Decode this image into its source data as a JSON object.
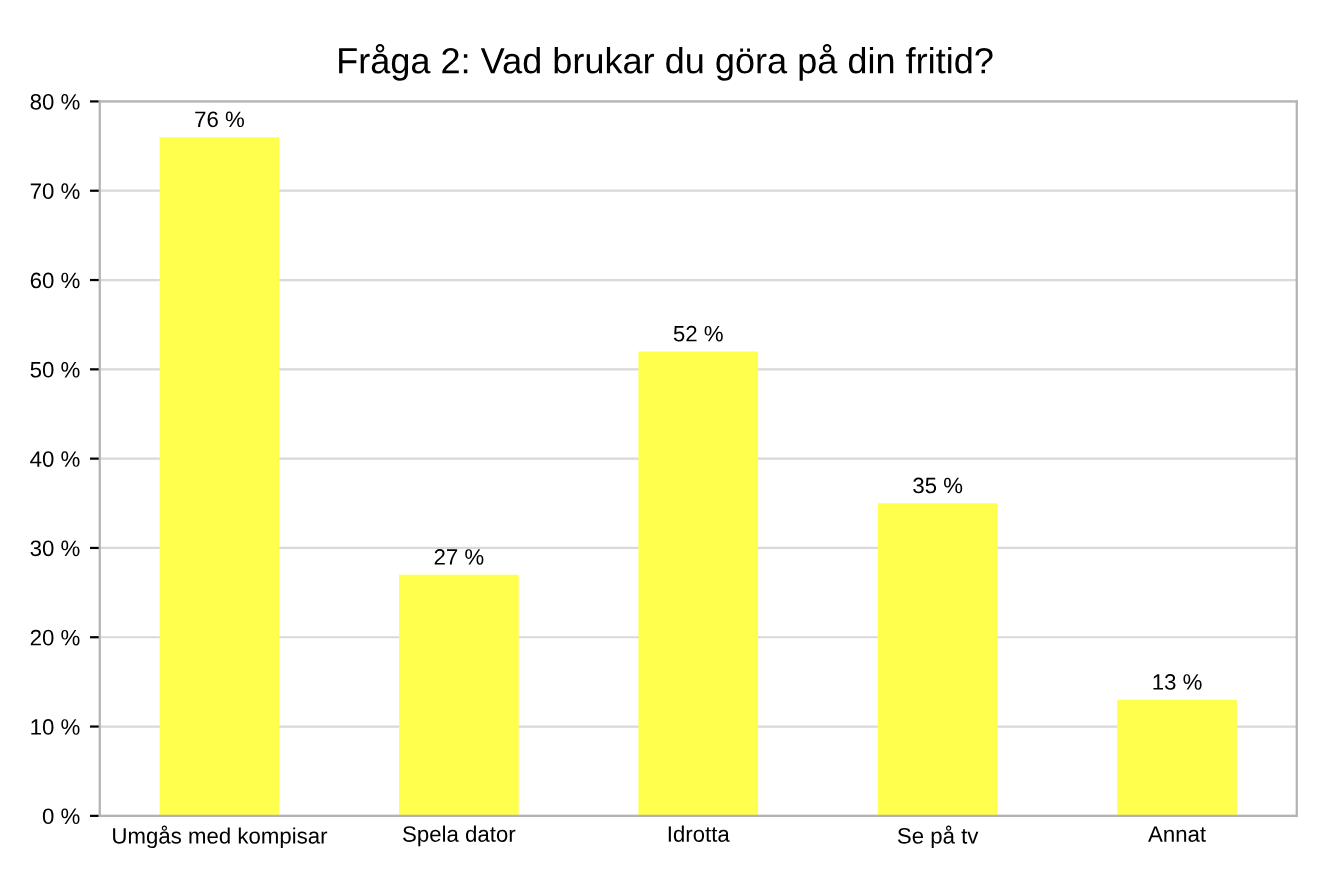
{
  "chart_data": {
    "type": "bar",
    "title": "Fråga 2: Vad brukar du göra på din fritid?",
    "categories": [
      "Umgås med kompisar",
      "Spela dator",
      "Idrotta",
      "Se på tv",
      "Annat"
    ],
    "values": [
      76,
      27,
      52,
      35,
      13
    ],
    "value_labels": [
      "76 %",
      "27 %",
      "52 %",
      "35 %",
      "13 %"
    ],
    "color": "#ffff4d",
    "ylim": [
      0,
      80
    ],
    "yticks": [
      {
        "value": 0,
        "label": "0 %"
      },
      {
        "value": 10,
        "label": "10 %"
      },
      {
        "value": 20,
        "label": "20 %"
      },
      {
        "value": 30,
        "label": "30 %"
      },
      {
        "value": 40,
        "label": "40 %"
      },
      {
        "value": 50,
        "label": "50 %"
      },
      {
        "value": 60,
        "label": "60 %"
      },
      {
        "value": 70,
        "label": "70 %"
      },
      {
        "value": 80,
        "label": "80 %"
      }
    ],
    "grid": "y"
  }
}
